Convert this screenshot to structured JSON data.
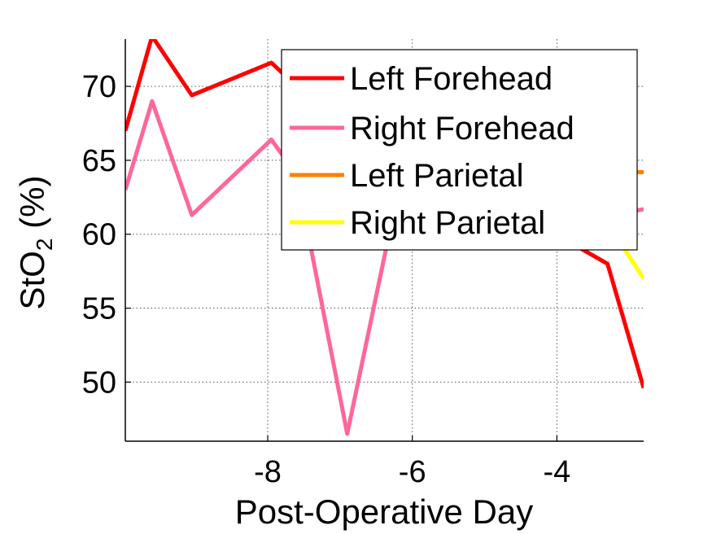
{
  "chart_data": {
    "type": "line",
    "title": "",
    "xlabel": "Post-Operative Day",
    "ylabel_main": "StO",
    "ylabel_sub": "2",
    "ylabel_suffix": " (%)",
    "xlim": [
      -9.97,
      -2.8
    ],
    "ylim": [
      46,
      73.2
    ],
    "xticks": [
      -8,
      -6,
      -4
    ],
    "yticks": [
      50,
      55,
      60,
      65,
      70
    ],
    "grid": true,
    "legend_position": "top-right",
    "series": [
      {
        "name": "Left Forehead",
        "color": "#ff0000",
        "x": [
          -9.97,
          -9.6,
          -9.05,
          -7.95,
          -7.6,
          -3.3,
          -2.8
        ],
        "y": [
          67.0,
          73.4,
          69.4,
          71.6,
          70.0,
          58.0,
          49.6
        ]
      },
      {
        "name": "Right Forehead",
        "color": "#ff6699",
        "x": [
          -9.97,
          -9.6,
          -9.05,
          -7.95,
          -7.6,
          -6.9,
          -6.3,
          -3.0,
          -2.8
        ],
        "y": [
          63.0,
          69.0,
          61.3,
          66.4,
          64.0,
          46.5,
          60.5,
          61.5,
          61.7
        ]
      },
      {
        "name": "Left Parietal",
        "color": "#ff8000",
        "x": [
          -3.0,
          -2.8
        ],
        "y": [
          64.2,
          64.2
        ]
      },
      {
        "name": "Right Parietal",
        "color": "#ffff00",
        "x": [
          -3.2,
          -2.8
        ],
        "y": [
          60.0,
          57.0
        ]
      }
    ]
  }
}
